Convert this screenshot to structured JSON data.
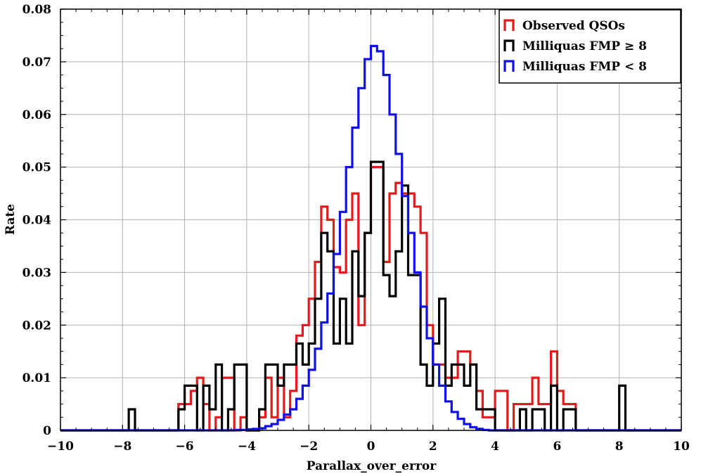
{
  "chart_data": {
    "type": "histogram",
    "xlabel": "Parallax_over_error",
    "ylabel": "Rate",
    "xlim": [
      -10,
      10
    ],
    "ylim": [
      0,
      0.08
    ],
    "grid": true,
    "legend_position": "top-right",
    "x_ticks": [
      -10,
      -8,
      -6,
      -4,
      -2,
      0,
      2,
      4,
      6,
      8,
      10
    ],
    "x_tick_labels": [
      "−10",
      "−8",
      "−6",
      "−4",
      "−2",
      "0",
      "2",
      "4",
      "6",
      "8",
      "10"
    ],
    "y_ticks": [
      0,
      0.01,
      0.02,
      0.03,
      0.04,
      0.05,
      0.06,
      0.07,
      0.08
    ],
    "y_tick_labels": [
      "0",
      "0.01",
      "0.02",
      "0.03",
      "0.04",
      "0.05",
      "0.06",
      "0.07",
      "0.08"
    ],
    "series": [
      {
        "name": "Observed QSOs",
        "color": "#e31a1c",
        "steps": [
          [
            -10.0,
            0.0
          ],
          [
            -6.2,
            0.005
          ],
          [
            -5.8,
            0.0075
          ],
          [
            -5.6,
            0.01
          ],
          [
            -5.4,
            0.005
          ],
          [
            -5.2,
            0.0
          ],
          [
            -5.0,
            0.0025
          ],
          [
            -4.8,
            0.01
          ],
          [
            -4.4,
            0.0
          ],
          [
            -4.2,
            0.0025
          ],
          [
            -4.0,
            0.0
          ],
          [
            -3.8,
            0.0
          ],
          [
            -3.6,
            0.0025
          ],
          [
            -3.4,
            0.01
          ],
          [
            -3.2,
            0.0025
          ],
          [
            -3.0,
            0.01
          ],
          [
            -2.8,
            0.0025
          ],
          [
            -2.6,
            0.0075
          ],
          [
            -2.4,
            0.018
          ],
          [
            -2.2,
            0.02
          ],
          [
            -2.0,
            0.025
          ],
          [
            -1.8,
            0.032
          ],
          [
            -1.6,
            0.0425
          ],
          [
            -1.4,
            0.04
          ],
          [
            -1.2,
            0.031
          ],
          [
            -1.0,
            0.03
          ],
          [
            -0.8,
            0.04
          ],
          [
            -0.6,
            0.045
          ],
          [
            -0.4,
            0.02
          ],
          [
            -0.2,
            0.0375
          ],
          [
            0.0,
            0.05
          ],
          [
            0.4,
            0.032
          ],
          [
            0.6,
            0.045
          ],
          [
            0.8,
            0.047
          ],
          [
            1.0,
            0.045
          ],
          [
            1.4,
            0.0425
          ],
          [
            1.6,
            0.0375
          ],
          [
            1.8,
            0.02
          ],
          [
            2.0,
            0.0125
          ],
          [
            2.4,
            0.01
          ],
          [
            2.8,
            0.015
          ],
          [
            3.2,
            0.0125
          ],
          [
            3.4,
            0.0075
          ],
          [
            3.6,
            0.0025
          ],
          [
            4.0,
            0.0075
          ],
          [
            4.4,
            0.0
          ],
          [
            4.6,
            0.005
          ],
          [
            5.0,
            0.005
          ],
          [
            5.2,
            0.01
          ],
          [
            5.4,
            0.005
          ],
          [
            5.8,
            0.015
          ],
          [
            6.0,
            0.0075
          ],
          [
            6.2,
            0.005
          ],
          [
            6.4,
            0.005
          ],
          [
            6.6,
            0.0
          ],
          [
            10.0,
            0.0
          ]
        ]
      },
      {
        "name": "Milliquas FMP ≥ 8",
        "color": "#000000",
        "steps": [
          [
            -10.0,
            0.0
          ],
          [
            -7.8,
            0.004
          ],
          [
            -7.6,
            0.0
          ],
          [
            -6.4,
            0.0
          ],
          [
            -6.2,
            0.004
          ],
          [
            -6.0,
            0.0085
          ],
          [
            -5.6,
            0.0
          ],
          [
            -5.4,
            0.0085
          ],
          [
            -5.2,
            0.004
          ],
          [
            -5.0,
            0.0125
          ],
          [
            -4.8,
            0.0
          ],
          [
            -4.6,
            0.004
          ],
          [
            -4.4,
            0.0125
          ],
          [
            -4.0,
            0.0
          ],
          [
            -3.6,
            0.004
          ],
          [
            -3.4,
            0.0125
          ],
          [
            -3.0,
            0.0085
          ],
          [
            -2.8,
            0.0125
          ],
          [
            -2.4,
            0.0165
          ],
          [
            -2.2,
            0.0125
          ],
          [
            -2.0,
            0.0165
          ],
          [
            -1.8,
            0.025
          ],
          [
            -1.6,
            0.0375
          ],
          [
            -1.4,
            0.034
          ],
          [
            -1.2,
            0.0165
          ],
          [
            -1.0,
            0.025
          ],
          [
            -0.8,
            0.0165
          ],
          [
            -0.6,
            0.034
          ],
          [
            -0.4,
            0.0255
          ],
          [
            -0.2,
            0.0375
          ],
          [
            0.0,
            0.051
          ],
          [
            0.4,
            0.0295
          ],
          [
            0.6,
            0.0255
          ],
          [
            0.8,
            0.034
          ],
          [
            1.0,
            0.0465
          ],
          [
            1.2,
            0.0295
          ],
          [
            1.6,
            0.0125
          ],
          [
            1.8,
            0.0085
          ],
          [
            2.0,
            0.0165
          ],
          [
            2.2,
            0.025
          ],
          [
            2.4,
            0.0085
          ],
          [
            2.6,
            0.0125
          ],
          [
            3.0,
            0.0085
          ],
          [
            3.2,
            0.0125
          ],
          [
            3.4,
            0.004
          ],
          [
            3.8,
            0.004
          ],
          [
            4.0,
            0.0
          ],
          [
            4.2,
            0.0
          ],
          [
            4.6,
            0.0
          ],
          [
            4.8,
            0.004
          ],
          [
            5.0,
            0.0
          ],
          [
            5.2,
            0.004
          ],
          [
            5.6,
            0.0
          ],
          [
            5.8,
            0.0085
          ],
          [
            6.0,
            0.0
          ],
          [
            6.2,
            0.004
          ],
          [
            6.6,
            0.0
          ],
          [
            7.8,
            0.0
          ],
          [
            8.0,
            0.0085
          ],
          [
            8.2,
            0.0
          ],
          [
            10.0,
            0.0
          ]
        ]
      },
      {
        "name": "Milliquas FMP < 8",
        "color": "#1010e8",
        "steps": [
          [
            -10.0,
            0.0
          ],
          [
            -5.0,
            0.0
          ],
          [
            -4.4,
            0.0001
          ],
          [
            -4.2,
            0.0001
          ],
          [
            -4.0,
            0.0002
          ],
          [
            -3.8,
            0.0003
          ],
          [
            -3.6,
            0.0004
          ],
          [
            -3.4,
            0.0008
          ],
          [
            -3.2,
            0.0012
          ],
          [
            -3.0,
            0.002
          ],
          [
            -2.8,
            0.003
          ],
          [
            -2.6,
            0.004
          ],
          [
            -2.4,
            0.006
          ],
          [
            -2.2,
            0.0085
          ],
          [
            -2.0,
            0.0115
          ],
          [
            -1.8,
            0.0155
          ],
          [
            -1.6,
            0.0205
          ],
          [
            -1.4,
            0.026
          ],
          [
            -1.2,
            0.0335
          ],
          [
            -1.0,
            0.0415
          ],
          [
            -0.8,
            0.05
          ],
          [
            -0.6,
            0.0575
          ],
          [
            -0.4,
            0.065
          ],
          [
            -0.2,
            0.0705
          ],
          [
            0.0,
            0.073
          ],
          [
            0.2,
            0.072
          ],
          [
            0.4,
            0.0675
          ],
          [
            0.6,
            0.06
          ],
          [
            0.8,
            0.0525
          ],
          [
            1.0,
            0.0445
          ],
          [
            1.2,
            0.0375
          ],
          [
            1.4,
            0.03
          ],
          [
            1.6,
            0.0235
          ],
          [
            1.8,
            0.0175
          ],
          [
            2.0,
            0.0125
          ],
          [
            2.2,
            0.0085
          ],
          [
            2.4,
            0.0055
          ],
          [
            2.6,
            0.0035
          ],
          [
            2.8,
            0.0022
          ],
          [
            3.0,
            0.0012
          ],
          [
            3.2,
            0.0006
          ],
          [
            3.4,
            0.0003
          ],
          [
            3.6,
            0.0001
          ],
          [
            3.8,
            0.0
          ],
          [
            10.0,
            0.0
          ]
        ]
      }
    ]
  },
  "legend": {
    "items": [
      {
        "label": "Observed QSOs",
        "color": "#e31a1c"
      },
      {
        "label": "Milliquas FMP ≥ 8",
        "color": "#000000"
      },
      {
        "label": "Milliquas FMP < 8",
        "color": "#1010e8"
      }
    ]
  }
}
